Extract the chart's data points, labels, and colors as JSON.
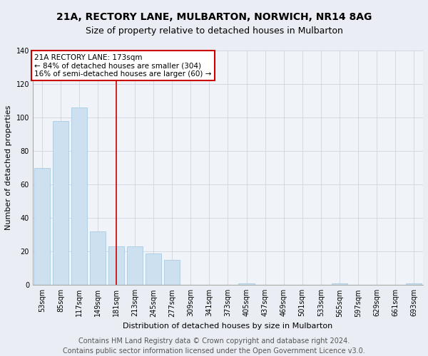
{
  "title1": "21A, RECTORY LANE, MULBARTON, NORWICH, NR14 8AG",
  "title2": "Size of property relative to detached houses in Mulbarton",
  "xlabel": "Distribution of detached houses by size in Mulbarton",
  "ylabel": "Number of detached properties",
  "footnote": "Contains HM Land Registry data © Crown copyright and database right 2024.\nContains public sector information licensed under the Open Government Licence v3.0.",
  "categories": [
    "53sqm",
    "85sqm",
    "117sqm",
    "149sqm",
    "181sqm",
    "213sqm",
    "245sqm",
    "277sqm",
    "309sqm",
    "341sqm",
    "373sqm",
    "405sqm",
    "437sqm",
    "469sqm",
    "501sqm",
    "533sqm",
    "565sqm",
    "597sqm",
    "629sqm",
    "661sqm",
    "693sqm"
  ],
  "values": [
    70,
    98,
    106,
    32,
    23,
    23,
    19,
    15,
    0,
    0,
    0,
    1,
    0,
    0,
    0,
    0,
    1,
    0,
    0,
    0,
    1
  ],
  "bar_color": "#cce0f0",
  "bar_edge_color": "#a0c4e0",
  "vline_x": 4.0,
  "vline_color": "#cc0000",
  "annotation_text": "21A RECTORY LANE: 173sqm\n← 84% of detached houses are smaller (304)\n16% of semi-detached houses are larger (60) →",
  "annotation_box_color": "#ffffff",
  "annotation_box_edge_color": "#cc0000",
  "ylim": [
    0,
    140
  ],
  "yticks": [
    0,
    20,
    40,
    60,
    80,
    100,
    120,
    140
  ],
  "bg_color": "#eaeef4",
  "plot_bg_color": "#f0f4f8",
  "title1_fontsize": 10,
  "title2_fontsize": 9,
  "footnote_fontsize": 7,
  "annotation_fontsize": 7.5,
  "axis_label_fontsize": 8,
  "tick_fontsize": 7,
  "ylabel_fontsize": 8
}
